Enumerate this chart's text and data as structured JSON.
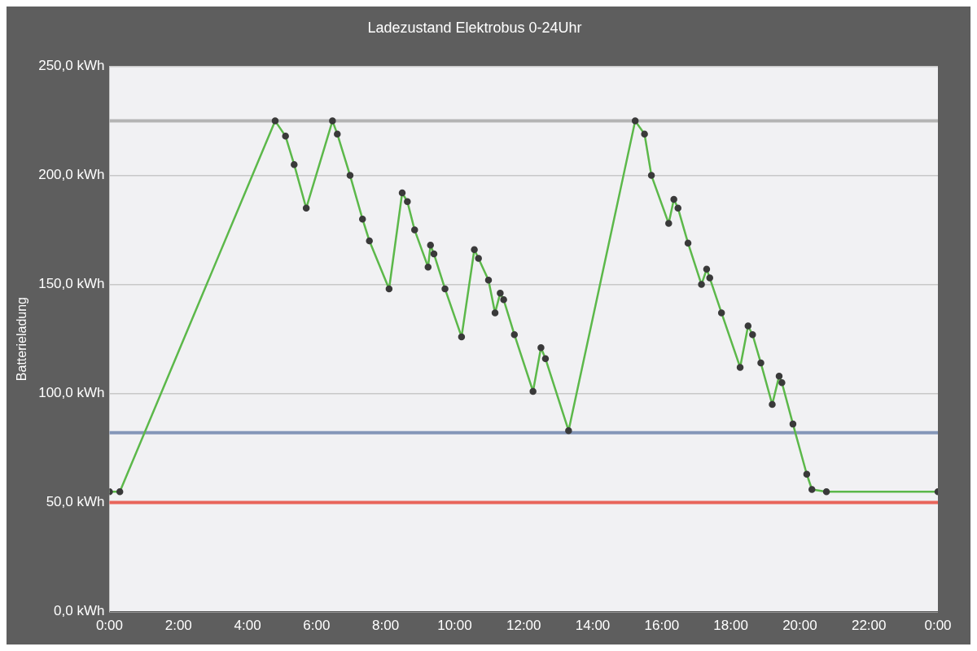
{
  "chart_data": {
    "type": "line",
    "title": "Ladezustand Elektrobus 0-24Uhr",
    "ylabel": "Batterieladung",
    "x": [
      0,
      0.3,
      4.8,
      5.1,
      5.35,
      5.7,
      6.46,
      6.6,
      6.97,
      7.33,
      7.53,
      8.1,
      8.48,
      8.63,
      8.84,
      9.23,
      9.3,
      9.4,
      9.72,
      10.2,
      10.57,
      10.69,
      10.98,
      11.17,
      11.32,
      11.42,
      11.73,
      12.27,
      12.5,
      12.63,
      13.3,
      15.23,
      15.5,
      15.7,
      16.2,
      16.35,
      16.47,
      16.76,
      17.15,
      17.3,
      17.39,
      17.73,
      18.27,
      18.5,
      18.63,
      18.87,
      19.2,
      19.4,
      19.48,
      19.8,
      20.2,
      20.35,
      20.77,
      24
    ],
    "series": [
      {
        "color": "#5cb84a",
        "values": [
          55,
          55,
          225,
          218,
          205,
          185,
          225,
          219,
          200,
          180,
          170,
          148,
          192,
          188,
          175,
          158,
          168,
          164,
          148,
          126,
          166,
          162,
          152,
          137,
          146,
          143,
          127,
          101,
          121,
          116,
          83,
          225,
          219,
          200,
          178,
          189,
          185,
          169,
          150,
          157,
          153,
          137,
          112,
          131,
          127,
          114,
          95,
          108,
          105,
          86,
          63,
          56,
          55,
          55
        ]
      }
    ],
    "xlim": [
      0,
      24
    ],
    "xticks": [
      {
        "value": 0,
        "label": "0:00"
      },
      {
        "value": 2,
        "label": "2:00"
      },
      {
        "value": 4,
        "label": "4:00"
      },
      {
        "value": 6,
        "label": "6:00"
      },
      {
        "value": 8,
        "label": "8:00"
      },
      {
        "value": 10,
        "label": "10:00"
      },
      {
        "value": 12,
        "label": "12:00"
      },
      {
        "value": 14,
        "label": "14:00"
      },
      {
        "value": 16,
        "label": "16:00"
      },
      {
        "value": 18,
        "label": "18:00"
      },
      {
        "value": 20,
        "label": "20:00"
      },
      {
        "value": 22,
        "label": "22:00"
      },
      {
        "value": 24,
        "label": "0:00"
      }
    ],
    "ylim": [
      0,
      250
    ],
    "yticks": [
      {
        "value": 0,
        "label": "0,0 kWh"
      },
      {
        "value": 50,
        "label": "50,0 kWh"
      },
      {
        "value": 100,
        "label": "100,0 kWh"
      },
      {
        "value": 150,
        "label": "150,0 kWh"
      },
      {
        "value": 200,
        "label": "200,0 kWh"
      },
      {
        "value": 250,
        "label": "250,0 kWh"
      }
    ],
    "ref_lines": [
      {
        "axis": "y",
        "value": 225,
        "color": "#b4b4b4"
      },
      {
        "axis": "y",
        "value": 82,
        "color": "#8496b8"
      },
      {
        "axis": "y",
        "value": 50,
        "color": "#e8645a"
      }
    ],
    "grid": "y",
    "legend": false,
    "marker": "circle",
    "line_style": "solid"
  }
}
